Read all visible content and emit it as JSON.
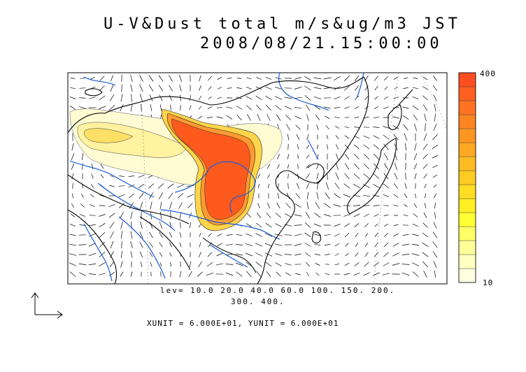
{
  "title": {
    "line1": "U-V&Dust total m/s&ug/m3 JST",
    "line2": "2008/08/21.15:00:00"
  },
  "colorbar": {
    "max_label": "400",
    "min_label": "10",
    "colors": [
      "#ffffe0",
      "#ffffc0",
      "#ffff99",
      "#ffff66",
      "#ffff33",
      "#ffee22",
      "#ffdd22",
      "#ffcc22",
      "#ffbb22",
      "#ffa822",
      "#ff9622",
      "#ff8422",
      "#ff7222",
      "#ff6022",
      "#ff4e22"
    ]
  },
  "contour": {
    "levels_line1": "lev= 10.0 20.0 40.0 60.0 100. 150. 200.",
    "levels_line2": "300. 400."
  },
  "units": "XUNIT = 6.000E+01, YUNIT = 6.000E+01",
  "colors": {
    "river": "#1a5cd6",
    "coast": "#000000",
    "dust_high": "#ff5a1e"
  }
}
